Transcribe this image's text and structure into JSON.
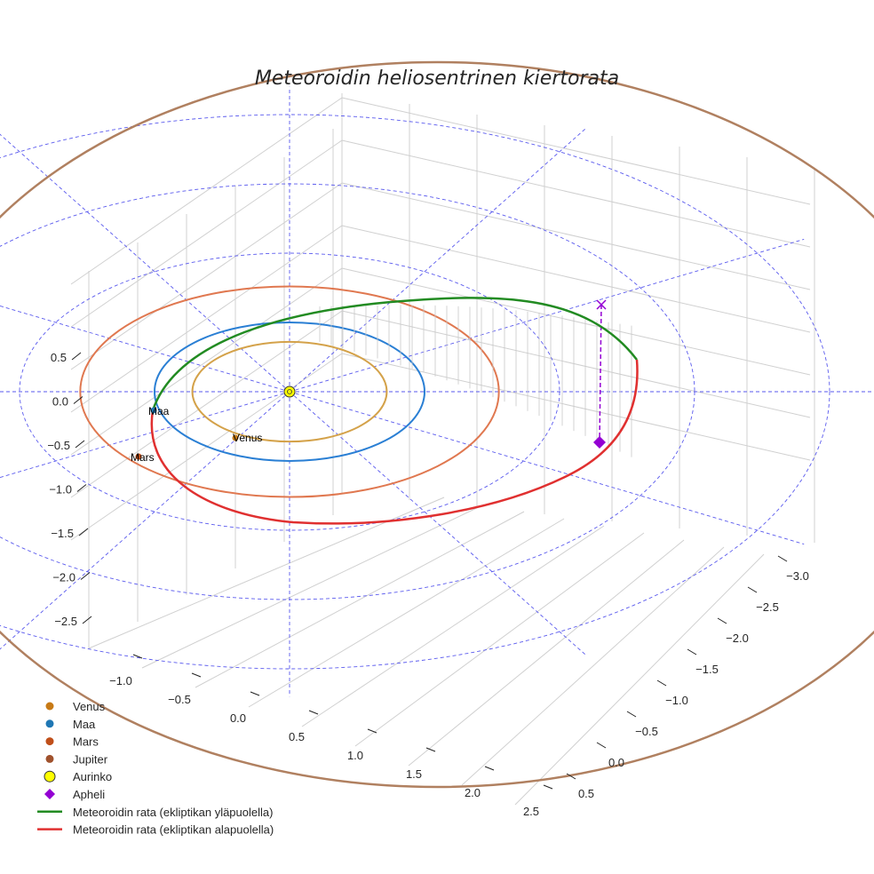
{
  "chart_data": {
    "type": "line",
    "title": "Meteoroidin heliosentrinen kiertorata",
    "xlabel": "",
    "ylabel": "",
    "zlabel": "",
    "grid": true,
    "legend_placement": "bottom-left",
    "axes": {
      "x": {
        "ticks": [
          "−1.0",
          "−0.5",
          "0.0",
          "0.5",
          "1.0",
          "1.5",
          "2.0",
          "2.5"
        ]
      },
      "y": {
        "ticks": [
          "−3.0",
          "−2.5",
          "−2.0",
          "−1.5",
          "−1.0",
          "−0.5",
          "0.0",
          "0.5"
        ]
      },
      "z": {
        "ticks": [
          "0.5",
          "0.0",
          "−0.5",
          "−1.0",
          "−1.5",
          "−2.0",
          "−2.5"
        ]
      }
    },
    "planets": [
      {
        "name": "Venus",
        "a_au": 0.72,
        "color": "#d4a24a",
        "marker_color": "#c77a16",
        "label": "Venus"
      },
      {
        "name": "Maa",
        "a_au": 1.0,
        "color": "#2a7fd4",
        "marker_color": "#1f77b4",
        "label": "Maa"
      },
      {
        "name": "Mars",
        "a_au": 1.52,
        "color": "#e07850",
        "marker_color": "#c04f1a",
        "label": "Mars"
      },
      {
        "name": "Jupiter",
        "a_au": 5.2,
        "color": "#b08060",
        "marker_color": "#a0522d"
      }
    ],
    "sun": {
      "name": "Aurinko",
      "color": "#ffff00"
    },
    "aphelion": {
      "name": "Apheli",
      "color": "#9400d3"
    },
    "series": [
      {
        "name": "Meteoroidin rata (ekliptikan yläpuolella)",
        "color": "#228b22"
      },
      {
        "name": "Meteoroidin rata (ekliptikan alapuolella)",
        "color": "#e03030"
      }
    ]
  },
  "legend": [
    {
      "label": "Venus",
      "kind": "dot",
      "color": "#c77a16"
    },
    {
      "label": "Maa",
      "kind": "dot",
      "color": "#1f77b4"
    },
    {
      "label": "Mars",
      "kind": "dot",
      "color": "#c04f1a"
    },
    {
      "label": "Jupiter",
      "kind": "dot",
      "color": "#a0522d"
    },
    {
      "label": "Aurinko",
      "kind": "sun",
      "color": "#ffff00"
    },
    {
      "label": "Apheli",
      "kind": "diamond",
      "color": "#9400d3"
    },
    {
      "label": "Meteoroidin rata (ekliptikan yläpuolella)",
      "kind": "line",
      "color": "#228b22"
    },
    {
      "label": "Meteoroidin rata (ekliptikan alapuolella)",
      "kind": "line",
      "color": "#e03030"
    }
  ]
}
